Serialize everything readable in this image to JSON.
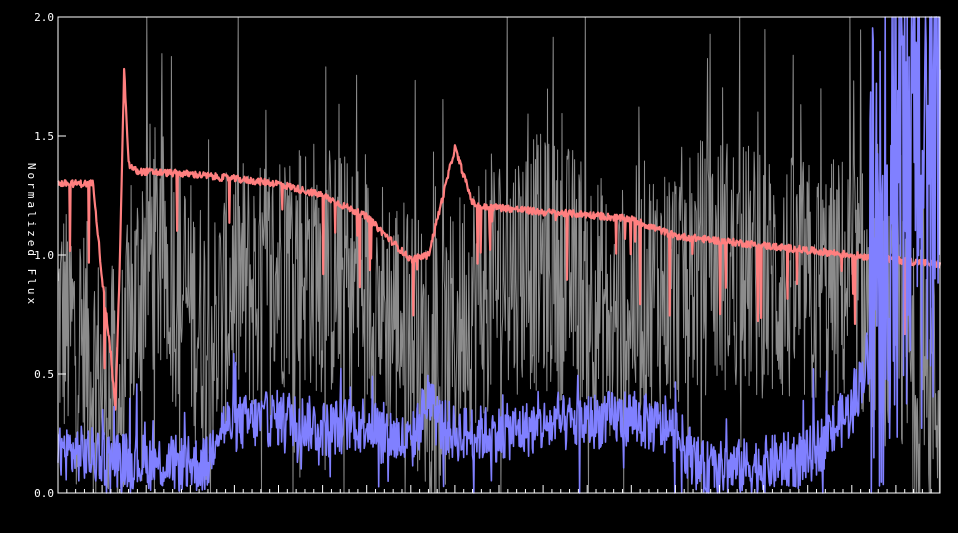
{
  "chart_data": {
    "type": "line",
    "title": "",
    "xlabel": "",
    "ylabel": "Normalized Flux",
    "ylim": [
      0,
      2.0
    ],
    "yticks": [
      {
        "value": 0.0,
        "label": "0.0"
      },
      {
        "value": 0.5,
        "label": "0.5"
      },
      {
        "value": 1.0,
        "label": "1.0"
      },
      {
        "value": 1.5,
        "label": "1.5"
      },
      {
        "value": 2.0,
        "label": "2.0"
      }
    ],
    "grid": false,
    "legend": "none",
    "background": "#000000",
    "axis_color": "#ffffff",
    "series": [
      {
        "color": "#8c8c8c",
        "style": "noisy spectrum",
        "x": [
          0.0,
          0.03,
          0.05,
          0.07,
          0.1,
          0.13,
          0.16,
          0.18,
          0.2,
          0.23,
          0.26,
          0.3,
          0.33,
          0.36,
          0.4,
          0.43,
          0.46,
          0.5,
          0.53,
          0.56,
          0.6,
          0.63,
          0.66,
          0.7,
          0.73,
          0.76,
          0.8,
          0.83,
          0.86,
          0.9,
          0.92,
          0.95,
          0.97,
          1.0
        ],
        "values": [
          0.75,
          0.62,
          0.45,
          0.4,
          1.05,
          0.92,
          0.72,
          0.68,
          0.9,
          0.85,
          1.0,
          0.95,
          0.88,
          0.82,
          0.7,
          0.45,
          0.78,
          0.92,
          0.98,
          0.95,
          0.9,
          0.7,
          0.85,
          0.9,
          0.95,
          0.97,
          0.9,
          0.88,
          0.85,
          0.9,
          0.8,
          0.7,
          0.5,
          0.4
        ],
        "noise": 0.55
      },
      {
        "color": "#ff7f7f",
        "style": "model spectrum",
        "x": [
          0.0,
          0.04,
          0.05,
          0.06,
          0.065,
          0.07,
          0.075,
          0.08,
          0.09,
          0.1,
          0.15,
          0.2,
          0.25,
          0.3,
          0.35,
          0.4,
          0.42,
          0.45,
          0.47,
          0.48,
          0.5,
          0.55,
          0.6,
          0.65,
          0.7,
          0.75,
          0.8,
          0.85,
          0.9,
          0.95,
          1.0
        ],
        "values": [
          1.3,
          1.3,
          0.9,
          0.58,
          0.35,
          0.95,
          1.78,
          1.38,
          1.35,
          1.35,
          1.34,
          1.32,
          1.3,
          1.25,
          1.16,
          0.98,
          1.0,
          1.45,
          1.22,
          1.2,
          1.2,
          1.18,
          1.17,
          1.15,
          1.08,
          1.06,
          1.04,
          1.02,
          1.0,
          0.98,
          0.96
        ]
      },
      {
        "color": "#8080ff",
        "style": "error spectrum",
        "x": [
          0.0,
          0.05,
          0.1,
          0.15,
          0.17,
          0.18,
          0.22,
          0.26,
          0.3,
          0.35,
          0.4,
          0.42,
          0.43,
          0.45,
          0.5,
          0.55,
          0.6,
          0.65,
          0.7,
          0.73,
          0.75,
          0.8,
          0.85,
          0.9,
          0.92,
          0.95,
          1.0
        ],
        "values": [
          0.18,
          0.15,
          0.13,
          0.12,
          0.12,
          0.28,
          0.3,
          0.32,
          0.27,
          0.3,
          0.2,
          0.4,
          0.3,
          0.25,
          0.25,
          0.28,
          0.3,
          0.32,
          0.25,
          0.1,
          0.1,
          0.12,
          0.15,
          0.35,
          0.6,
          0.85,
          1.1
        ],
        "noise": 0.12
      }
    ]
  }
}
